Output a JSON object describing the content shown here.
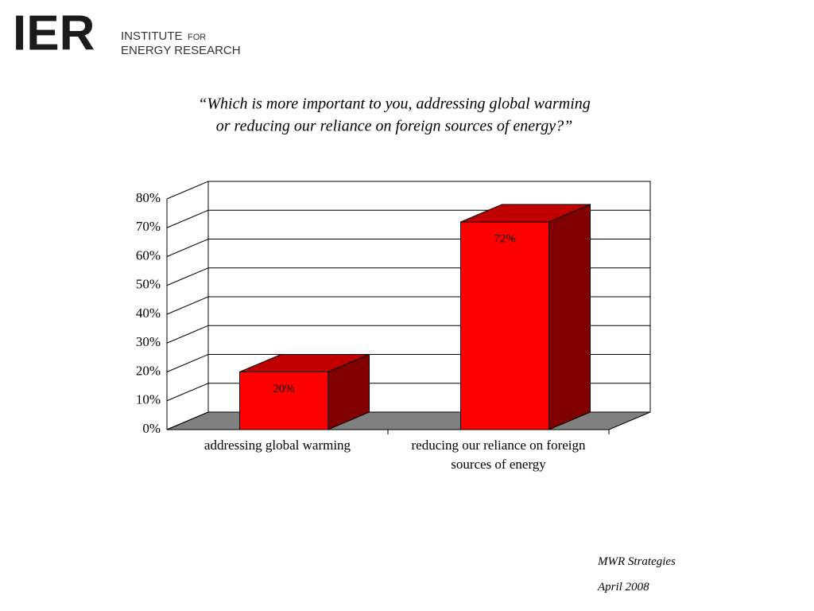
{
  "logo": {
    "mark": "IER",
    "line1": "INSTITUTE",
    "line1b": "FOR",
    "line2": "ENERGY RESEARCH"
  },
  "chart_data": {
    "type": "bar3d",
    "title": [
      "“Which is more important to you, addressing global warming",
      "or reducing our reliance on foreign sources of energy?”"
    ],
    "categories": [
      "addressing global warming",
      "reducing our reliance on foreign sources of energy"
    ],
    "values": [
      20,
      72
    ],
    "value_labels": [
      "20%",
      "72%"
    ],
    "color": "#ff0000",
    "ylim": [
      0,
      80
    ],
    "yticks": [
      {
        "value": 0,
        "label": "0%"
      },
      {
        "value": 10,
        "label": "10%"
      },
      {
        "value": 20,
        "label": "20%"
      },
      {
        "value": 30,
        "label": "30%"
      },
      {
        "value": 40,
        "label": "40%"
      },
      {
        "value": 50,
        "label": "50%"
      },
      {
        "value": 60,
        "label": "60%"
      },
      {
        "value": 70,
        "label": "70%"
      },
      {
        "value": 80,
        "label": "80%"
      }
    ],
    "grid": true
  },
  "footer": [
    "MWR Strategies",
    "April 2008"
  ]
}
